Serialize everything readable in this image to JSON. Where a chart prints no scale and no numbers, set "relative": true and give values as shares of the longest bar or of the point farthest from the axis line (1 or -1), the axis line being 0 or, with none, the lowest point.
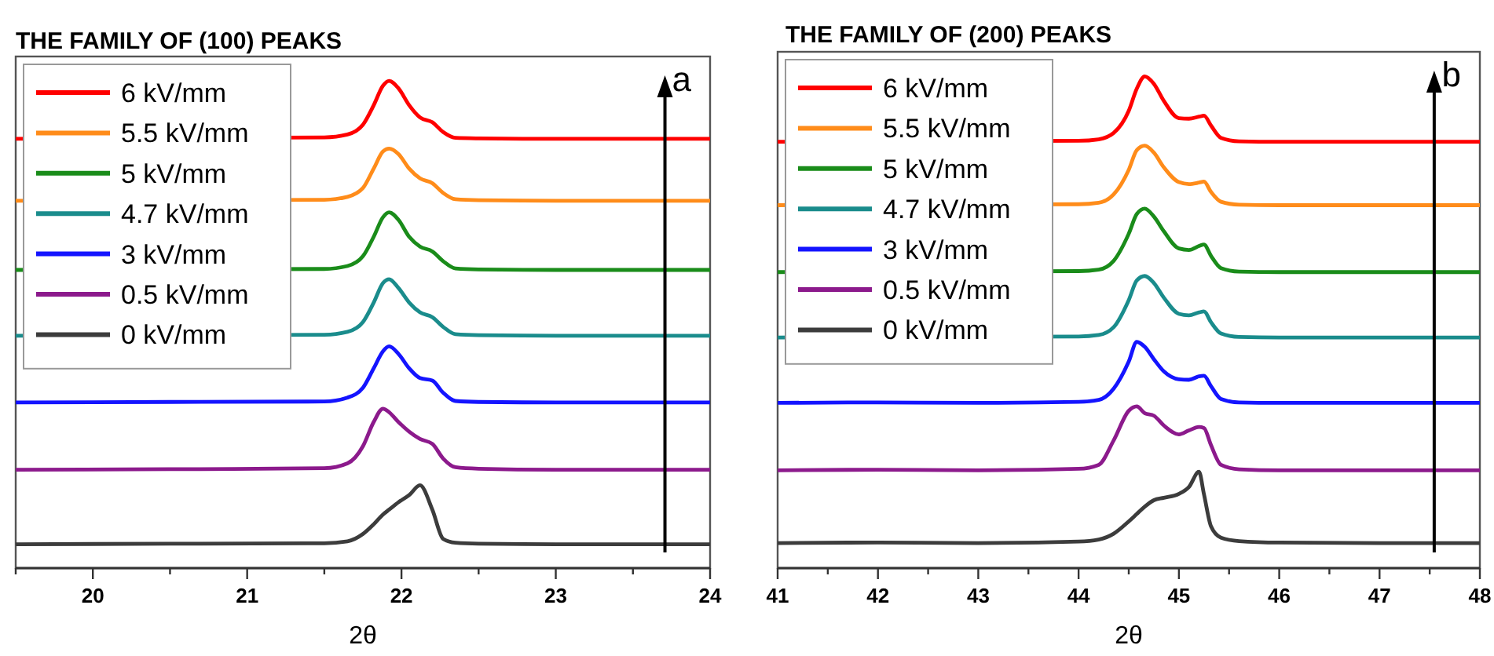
{
  "chart_data": [
    {
      "type": "line",
      "title": "THE FAMILY OF (100) PEAKS",
      "xlabel": "2θ",
      "relative": true,
      "legend": "top left",
      "annotations": [
        "a"
      ],
      "xlim": [
        19.5,
        24
      ],
      "xticks": [
        {
          "value": 19.5,
          "label": null
        },
        20,
        {
          "value": 20.5,
          "label": null
        },
        21,
        {
          "value": 21.5,
          "label": null
        },
        22,
        {
          "value": 22.5,
          "label": null
        },
        23,
        {
          "value": 23.5,
          "label": null
        },
        24
      ],
      "x": [
        19.5,
        20.5,
        21.5,
        21.65,
        21.75,
        21.82,
        21.88,
        21.92,
        21.98,
        22.05,
        22.12,
        22.2,
        22.27,
        22.35,
        22.5,
        23,
        24
      ],
      "series": [
        {
          "name": "6 kV/mm",
          "color": "#ff0000",
          "values": [
            0.881,
            null,
            0.884,
            0.89,
            0.91,
            0.95,
            0.99,
            1.0,
            0.985,
            0.95,
            0.925,
            0.915,
            0.895,
            0.883,
            0.882,
            0.881,
            0.881
          ]
        },
        {
          "name": "5.5 kV/mm",
          "color": "#ff8c1a",
          "values": [
            0.754,
            null,
            0.756,
            0.762,
            0.78,
            0.82,
            0.855,
            0.861,
            0.85,
            0.82,
            0.8,
            0.79,
            0.77,
            0.757,
            0.755,
            0.754,
            0.754
          ]
        },
        {
          "name": "5 kV/mm",
          "color": "#1a8c1a",
          "values": [
            0.612,
            null,
            0.614,
            0.62,
            0.64,
            0.68,
            0.72,
            0.73,
            0.715,
            0.68,
            0.66,
            0.65,
            0.63,
            0.615,
            0.613,
            0.612,
            0.612
          ]
        },
        {
          "name": "4.7 kV/mm",
          "color": "#1a8c8c",
          "values": [
            0.477,
            null,
            0.479,
            0.485,
            0.505,
            0.545,
            0.585,
            0.593,
            0.575,
            0.545,
            0.525,
            0.515,
            0.495,
            0.48,
            0.478,
            0.477,
            0.477
          ]
        },
        {
          "name": "3 kV/mm",
          "color": "#1414ff",
          "values": [
            0.34,
            0.341,
            0.342,
            0.35,
            0.37,
            0.41,
            0.445,
            0.455,
            0.44,
            0.41,
            0.39,
            0.385,
            0.36,
            0.343,
            0.341,
            0.34,
            0.34
          ]
        },
        {
          "name": "0.5 kV/mm",
          "color": "#8c1a8c",
          "values": [
            0.202,
            0.203,
            0.205,
            0.215,
            0.25,
            0.3,
            0.327,
            0.32,
            0.3,
            0.28,
            0.265,
            0.255,
            0.225,
            0.207,
            0.204,
            0.202,
            0.202
          ]
        },
        {
          "name": "0 kV/mm",
          "color": "#3c3c3c",
          "values": [
            0.049,
            0.05,
            0.051,
            0.055,
            0.07,
            0.09,
            0.11,
            0.12,
            0.135,
            0.15,
            0.17,
            0.12,
            0.06,
            0.052,
            0.05,
            0.049,
            0.049
          ]
        }
      ]
    },
    {
      "type": "line",
      "title": "THE FAMILY OF (200) PEAKS",
      "xlabel": "2θ",
      "relative": true,
      "legend": "top left",
      "annotations": [
        "b"
      ],
      "xlim": [
        41,
        48
      ],
      "xticks": [
        41,
        {
          "value": 41.5,
          "label": null
        },
        42,
        {
          "value": 42.5,
          "label": null
        },
        43,
        {
          "value": 43.5,
          "label": null
        },
        44,
        {
          "value": 44.5,
          "label": null
        },
        45,
        {
          "value": 45.5,
          "label": null
        },
        46,
        {
          "value": 46.5,
          "label": null
        },
        47,
        {
          "value": 47.5,
          "label": null
        },
        48
      ],
      "x": [
        41,
        42,
        43,
        44,
        44.2,
        44.35,
        44.5,
        44.58,
        44.66,
        44.75,
        44.85,
        45.0,
        45.1,
        45.2,
        45.25,
        45.32,
        45.42,
        45.6,
        46,
        47,
        48
      ],
      "series": [
        {
          "name": "6 kV/mm",
          "color": "#ff0000",
          "values": [
            0.867,
            null,
            null,
            0.869,
            0.872,
            0.885,
            0.93,
            0.975,
            1.0,
            0.985,
            0.95,
            0.915,
            0.914,
            0.918,
            0.92,
            0.9,
            0.875,
            0.868,
            0.867,
            0.867,
            0.867
          ]
        },
        {
          "name": "5.5 kV/mm",
          "color": "#ff8c1a",
          "values": [
            0.738,
            null,
            null,
            0.74,
            0.743,
            0.76,
            0.81,
            0.85,
            0.859,
            0.845,
            0.815,
            0.785,
            0.781,
            0.784,
            0.786,
            0.765,
            0.745,
            0.739,
            0.738,
            0.738,
            0.738
          ]
        },
        {
          "name": "5 kV/mm",
          "color": "#1a8c1a",
          "values": [
            0.602,
            null,
            null,
            0.604,
            0.607,
            0.625,
            0.68,
            0.72,
            0.731,
            0.715,
            0.685,
            0.65,
            0.647,
            0.655,
            0.658,
            0.635,
            0.61,
            0.603,
            0.602,
            0.602,
            0.602
          ]
        },
        {
          "name": "4.7 kV/mm",
          "color": "#1a8c8c",
          "values": [
            0.469,
            null,
            null,
            0.471,
            0.474,
            0.49,
            0.545,
            0.585,
            0.594,
            0.58,
            0.55,
            0.517,
            0.514,
            0.52,
            0.522,
            0.5,
            0.477,
            0.47,
            0.469,
            0.469,
            0.469
          ]
        },
        {
          "name": "3 kV/mm",
          "color": "#1414ff",
          "values": [
            0.336,
            0.337,
            0.336,
            0.338,
            0.342,
            0.365,
            0.42,
            0.46,
            0.45,
            0.425,
            0.4,
            0.384,
            0.383,
            0.39,
            0.391,
            0.37,
            0.344,
            0.337,
            0.336,
            0.336,
            0.336
          ]
        },
        {
          "name": "0.5 kV/mm",
          "color": "#8c1a8c",
          "values": [
            0.199,
            0.2,
            0.199,
            0.202,
            0.21,
            0.26,
            0.32,
            0.329,
            0.315,
            0.31,
            0.29,
            0.272,
            0.28,
            0.287,
            0.285,
            0.25,
            0.21,
            0.201,
            0.199,
            0.199,
            0.199
          ]
        },
        {
          "name": "0 kV/mm",
          "color": "#3c3c3c",
          "values": [
            0.051,
            0.052,
            0.051,
            0.054,
            0.058,
            0.07,
            0.095,
            0.11,
            0.125,
            0.138,
            0.143,
            0.151,
            0.165,
            0.196,
            0.15,
            0.085,
            0.062,
            0.055,
            0.052,
            0.051,
            0.051
          ]
        }
      ]
    }
  ]
}
